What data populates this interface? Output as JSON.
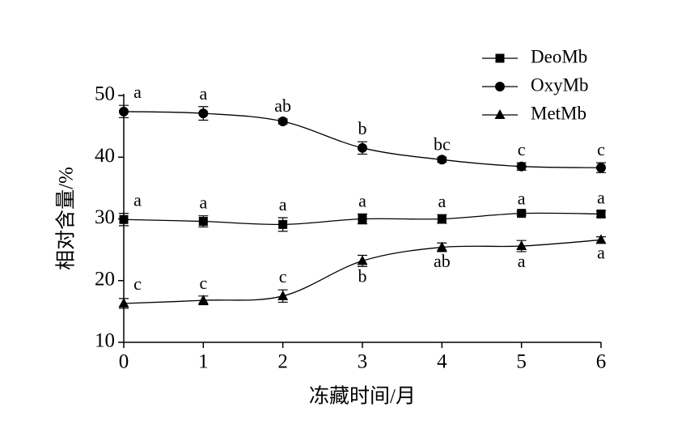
{
  "chart_data": {
    "type": "line",
    "x_label": "冻藏时间/月",
    "y_label": "相对含量/%",
    "x": [
      0,
      1,
      2,
      3,
      4,
      5,
      6
    ],
    "xlim": [
      0,
      6
    ],
    "xticks": [
      0,
      1,
      2,
      3,
      4,
      5,
      6
    ],
    "ylim": [
      10,
      50
    ],
    "yticks": [
      10,
      20,
      30,
      40,
      50
    ],
    "series": [
      {
        "name": "DeoMb",
        "color": "#000000",
        "marker": "square",
        "values": [
          29.9,
          29.6,
          29.1,
          30.0,
          30.0,
          30.9,
          30.8
        ],
        "errors": [
          1.0,
          0.9,
          1.1,
          0.8,
          0.7,
          0.3,
          0.5
        ],
        "letters": [
          "a",
          "a",
          "a",
          "a",
          "a",
          "a",
          "a"
        ]
      },
      {
        "name": "OxyMb",
        "color": "#000000",
        "marker": "circle",
        "values": [
          47.4,
          47.1,
          45.8,
          41.5,
          39.6,
          38.5,
          38.3
        ],
        "errors": [
          1.0,
          1.1,
          0.4,
          1.0,
          0.4,
          0.6,
          0.8
        ],
        "letters": [
          "a",
          "a",
          "ab",
          "b",
          "bc",
          "c",
          "c"
        ]
      },
      {
        "name": "MetMb",
        "color": "#000000",
        "marker": "triangle",
        "values": [
          16.3,
          16.8,
          17.5,
          23.2,
          25.4,
          25.6,
          26.6
        ],
        "errors": [
          0.8,
          0.7,
          1.0,
          0.9,
          0.7,
          0.9,
          0.5
        ],
        "letters": [
          "c",
          "c",
          "c",
          "b",
          "ab",
          "a",
          "a"
        ]
      }
    ]
  }
}
